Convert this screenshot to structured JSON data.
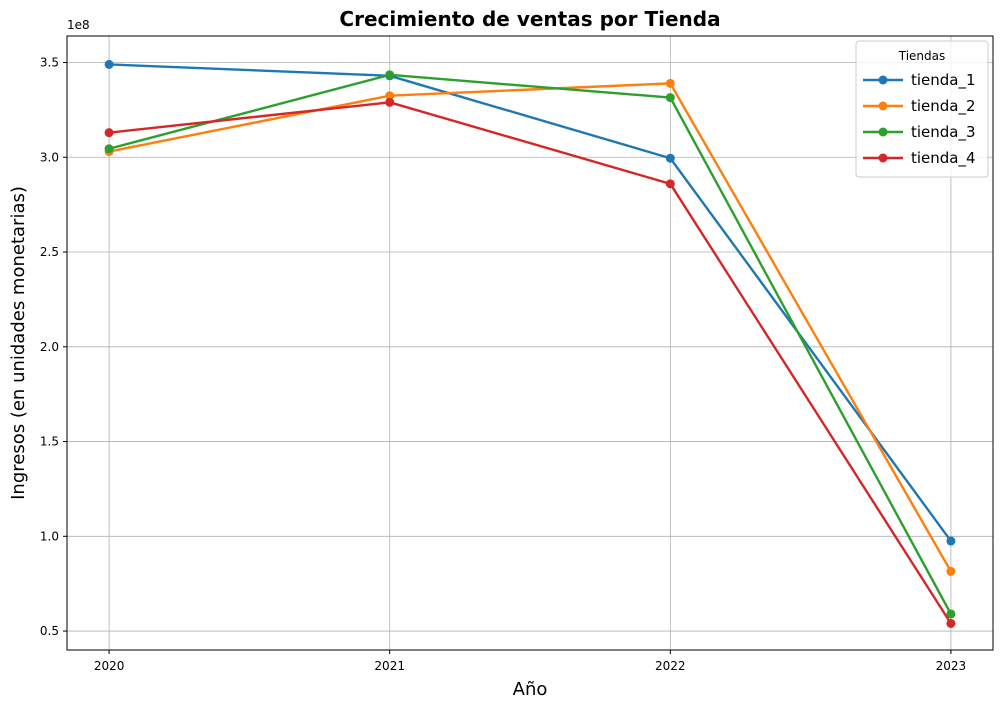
{
  "chart_data": {
    "type": "line",
    "title": "Crecimiento de ventas por Tienda",
    "xlabel": "Año",
    "ylabel": "Ingresos (en unidades monetarias)",
    "y_offset_label": "1e8",
    "x": [
      2020,
      2021,
      2022,
      2023
    ],
    "x_tick_labels": [
      "2020",
      "2021",
      "2022",
      "2023"
    ],
    "y_ticks": [
      0.5,
      1.0,
      1.5,
      2.0,
      2.5,
      3.0,
      3.5
    ],
    "y_tick_labels": [
      "0.5",
      "1.0",
      "1.5",
      "2.0",
      "2.5",
      "3.0",
      "3.5"
    ],
    "xlim": [
      2019.85,
      2023.15
    ],
    "ylim": [
      0.4,
      3.64
    ],
    "y_scale_factor": 100000000,
    "grid": true,
    "legend": {
      "title": "Tiendas",
      "placement": "top-right"
    },
    "series": [
      {
        "name": "tienda_1",
        "color": "#1f77b4",
        "values": [
          3.49,
          3.43,
          2.995,
          0.975
        ]
      },
      {
        "name": "tienda_2",
        "color": "#ff7f0e",
        "values": [
          3.03,
          3.325,
          3.39,
          0.815
        ]
      },
      {
        "name": "tienda_3",
        "color": "#2ca02c",
        "values": [
          3.045,
          3.435,
          3.315,
          0.59
        ]
      },
      {
        "name": "tienda_4",
        "color": "#d62728",
        "values": [
          3.13,
          3.29,
          2.86,
          0.54
        ]
      }
    ]
  }
}
